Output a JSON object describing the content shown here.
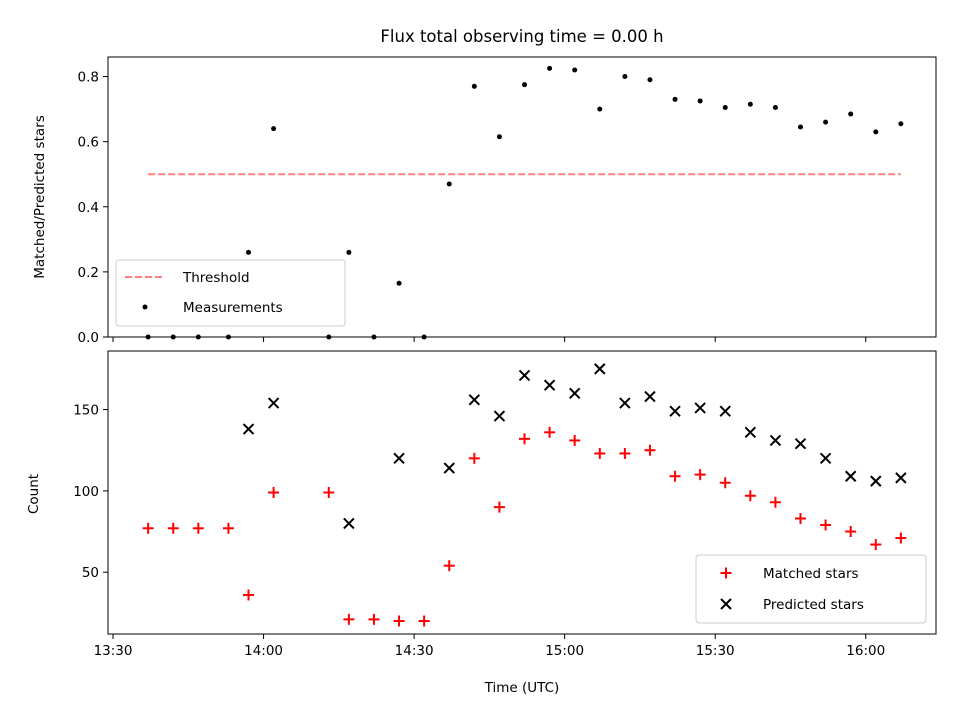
{
  "chart_data": [
    {
      "type": "scatter",
      "title": "Flux total observing time = 0.00 h",
      "xlabel": "",
      "ylabel": "Matched/Predicted stars",
      "ylim": [
        0,
        0.86
      ],
      "yticks": [
        "0.0",
        "0.2",
        "0.4",
        "0.6",
        "0.8"
      ],
      "ytick_values": [
        0,
        0.2,
        0.4,
        0.6,
        0.8
      ],
      "threshold": {
        "name": "Threshold",
        "value": 0.5,
        "x_start": "13:37",
        "x_end": "16:07",
        "color": "#ff7f7f"
      },
      "series": [
        {
          "name": "Measurements",
          "marker": "dot",
          "color": "#000000",
          "points": [
            [
              "13:37",
              0.0
            ],
            [
              "13:42",
              0.0
            ],
            [
              "13:47",
              0.0
            ],
            [
              "13:53",
              0.0
            ],
            [
              "13:57",
              0.26
            ],
            [
              "14:02",
              0.64
            ],
            [
              "14:13",
              0.0
            ],
            [
              "14:17",
              0.26
            ],
            [
              "14:22",
              0.0
            ],
            [
              "14:27",
              0.165
            ],
            [
              "14:32",
              0.0
            ],
            [
              "14:37",
              0.47
            ],
            [
              "14:42",
              0.77
            ],
            [
              "14:47",
              0.615
            ],
            [
              "14:52",
              0.775
            ],
            [
              "14:57",
              0.825
            ],
            [
              "15:02",
              0.82
            ],
            [
              "15:07",
              0.7
            ],
            [
              "15:12",
              0.8
            ],
            [
              "15:17",
              0.79
            ],
            [
              "15:22",
              0.73
            ],
            [
              "15:27",
              0.725
            ],
            [
              "15:32",
              0.705
            ],
            [
              "15:37",
              0.715
            ],
            [
              "15:42",
              0.705
            ],
            [
              "15:47",
              0.645
            ],
            [
              "15:52",
              0.66
            ],
            [
              "15:57",
              0.685
            ],
            [
              "16:02",
              0.63
            ],
            [
              "16:07",
              0.655
            ]
          ]
        }
      ],
      "legend": {
        "position": "lower-left",
        "entries": [
          "Threshold",
          "Measurements"
        ]
      }
    },
    {
      "type": "scatter",
      "title": "",
      "xlabel": "Time (UTC)",
      "ylabel": "Count",
      "ylim": [
        12,
        186
      ],
      "yticks": [
        "50",
        "100",
        "150"
      ],
      "ytick_values": [
        50,
        100,
        150
      ],
      "series": [
        {
          "name": "Matched stars",
          "marker": "plus",
          "color": "#ff0000",
          "points": [
            [
              "13:37",
              77
            ],
            [
              "13:42",
              77
            ],
            [
              "13:47",
              77
            ],
            [
              "13:53",
              77
            ],
            [
              "13:57",
              36
            ],
            [
              "14:02",
              99
            ],
            [
              "14:13",
              99
            ],
            [
              "14:17",
              21
            ],
            [
              "14:22",
              21
            ],
            [
              "14:27",
              20
            ],
            [
              "14:32",
              20
            ],
            [
              "14:37",
              54
            ],
            [
              "14:42",
              120
            ],
            [
              "14:47",
              90
            ],
            [
              "14:52",
              132
            ],
            [
              "14:57",
              136
            ],
            [
              "15:02",
              131
            ],
            [
              "15:07",
              123
            ],
            [
              "15:12",
              123
            ],
            [
              "15:17",
              125
            ],
            [
              "15:22",
              109
            ],
            [
              "15:27",
              110
            ],
            [
              "15:32",
              105
            ],
            [
              "15:37",
              97
            ],
            [
              "15:42",
              93
            ],
            [
              "15:47",
              83
            ],
            [
              "15:52",
              79
            ],
            [
              "15:57",
              75
            ],
            [
              "16:02",
              67
            ],
            [
              "16:07",
              71
            ]
          ]
        },
        {
          "name": "Predicted stars",
          "marker": "x",
          "color": "#000000",
          "points": [
            [
              "13:57",
              138
            ],
            [
              "14:02",
              154
            ],
            [
              "14:17",
              80
            ],
            [
              "14:27",
              120
            ],
            [
              "14:37",
              114
            ],
            [
              "14:42",
              156
            ],
            [
              "14:47",
              146
            ],
            [
              "14:52",
              171
            ],
            [
              "14:57",
              165
            ],
            [
              "15:02",
              160
            ],
            [
              "15:07",
              175
            ],
            [
              "15:12",
              154
            ],
            [
              "15:17",
              158
            ],
            [
              "15:22",
              149
            ],
            [
              "15:27",
              151
            ],
            [
              "15:32",
              149
            ],
            [
              "15:37",
              136
            ],
            [
              "15:42",
              131
            ],
            [
              "15:47",
              129
            ],
            [
              "15:52",
              120
            ],
            [
              "15:57",
              109
            ],
            [
              "16:02",
              106
            ],
            [
              "16:07",
              108
            ]
          ]
        }
      ],
      "legend": {
        "position": "lower-right",
        "entries": [
          "Matched stars",
          "Predicted stars"
        ]
      }
    }
  ],
  "x_axis": {
    "xlim": [
      "13:29",
      "16:14"
    ],
    "ticks": [
      "13:30",
      "14:00",
      "14:30",
      "15:00",
      "15:30",
      "16:00"
    ]
  }
}
